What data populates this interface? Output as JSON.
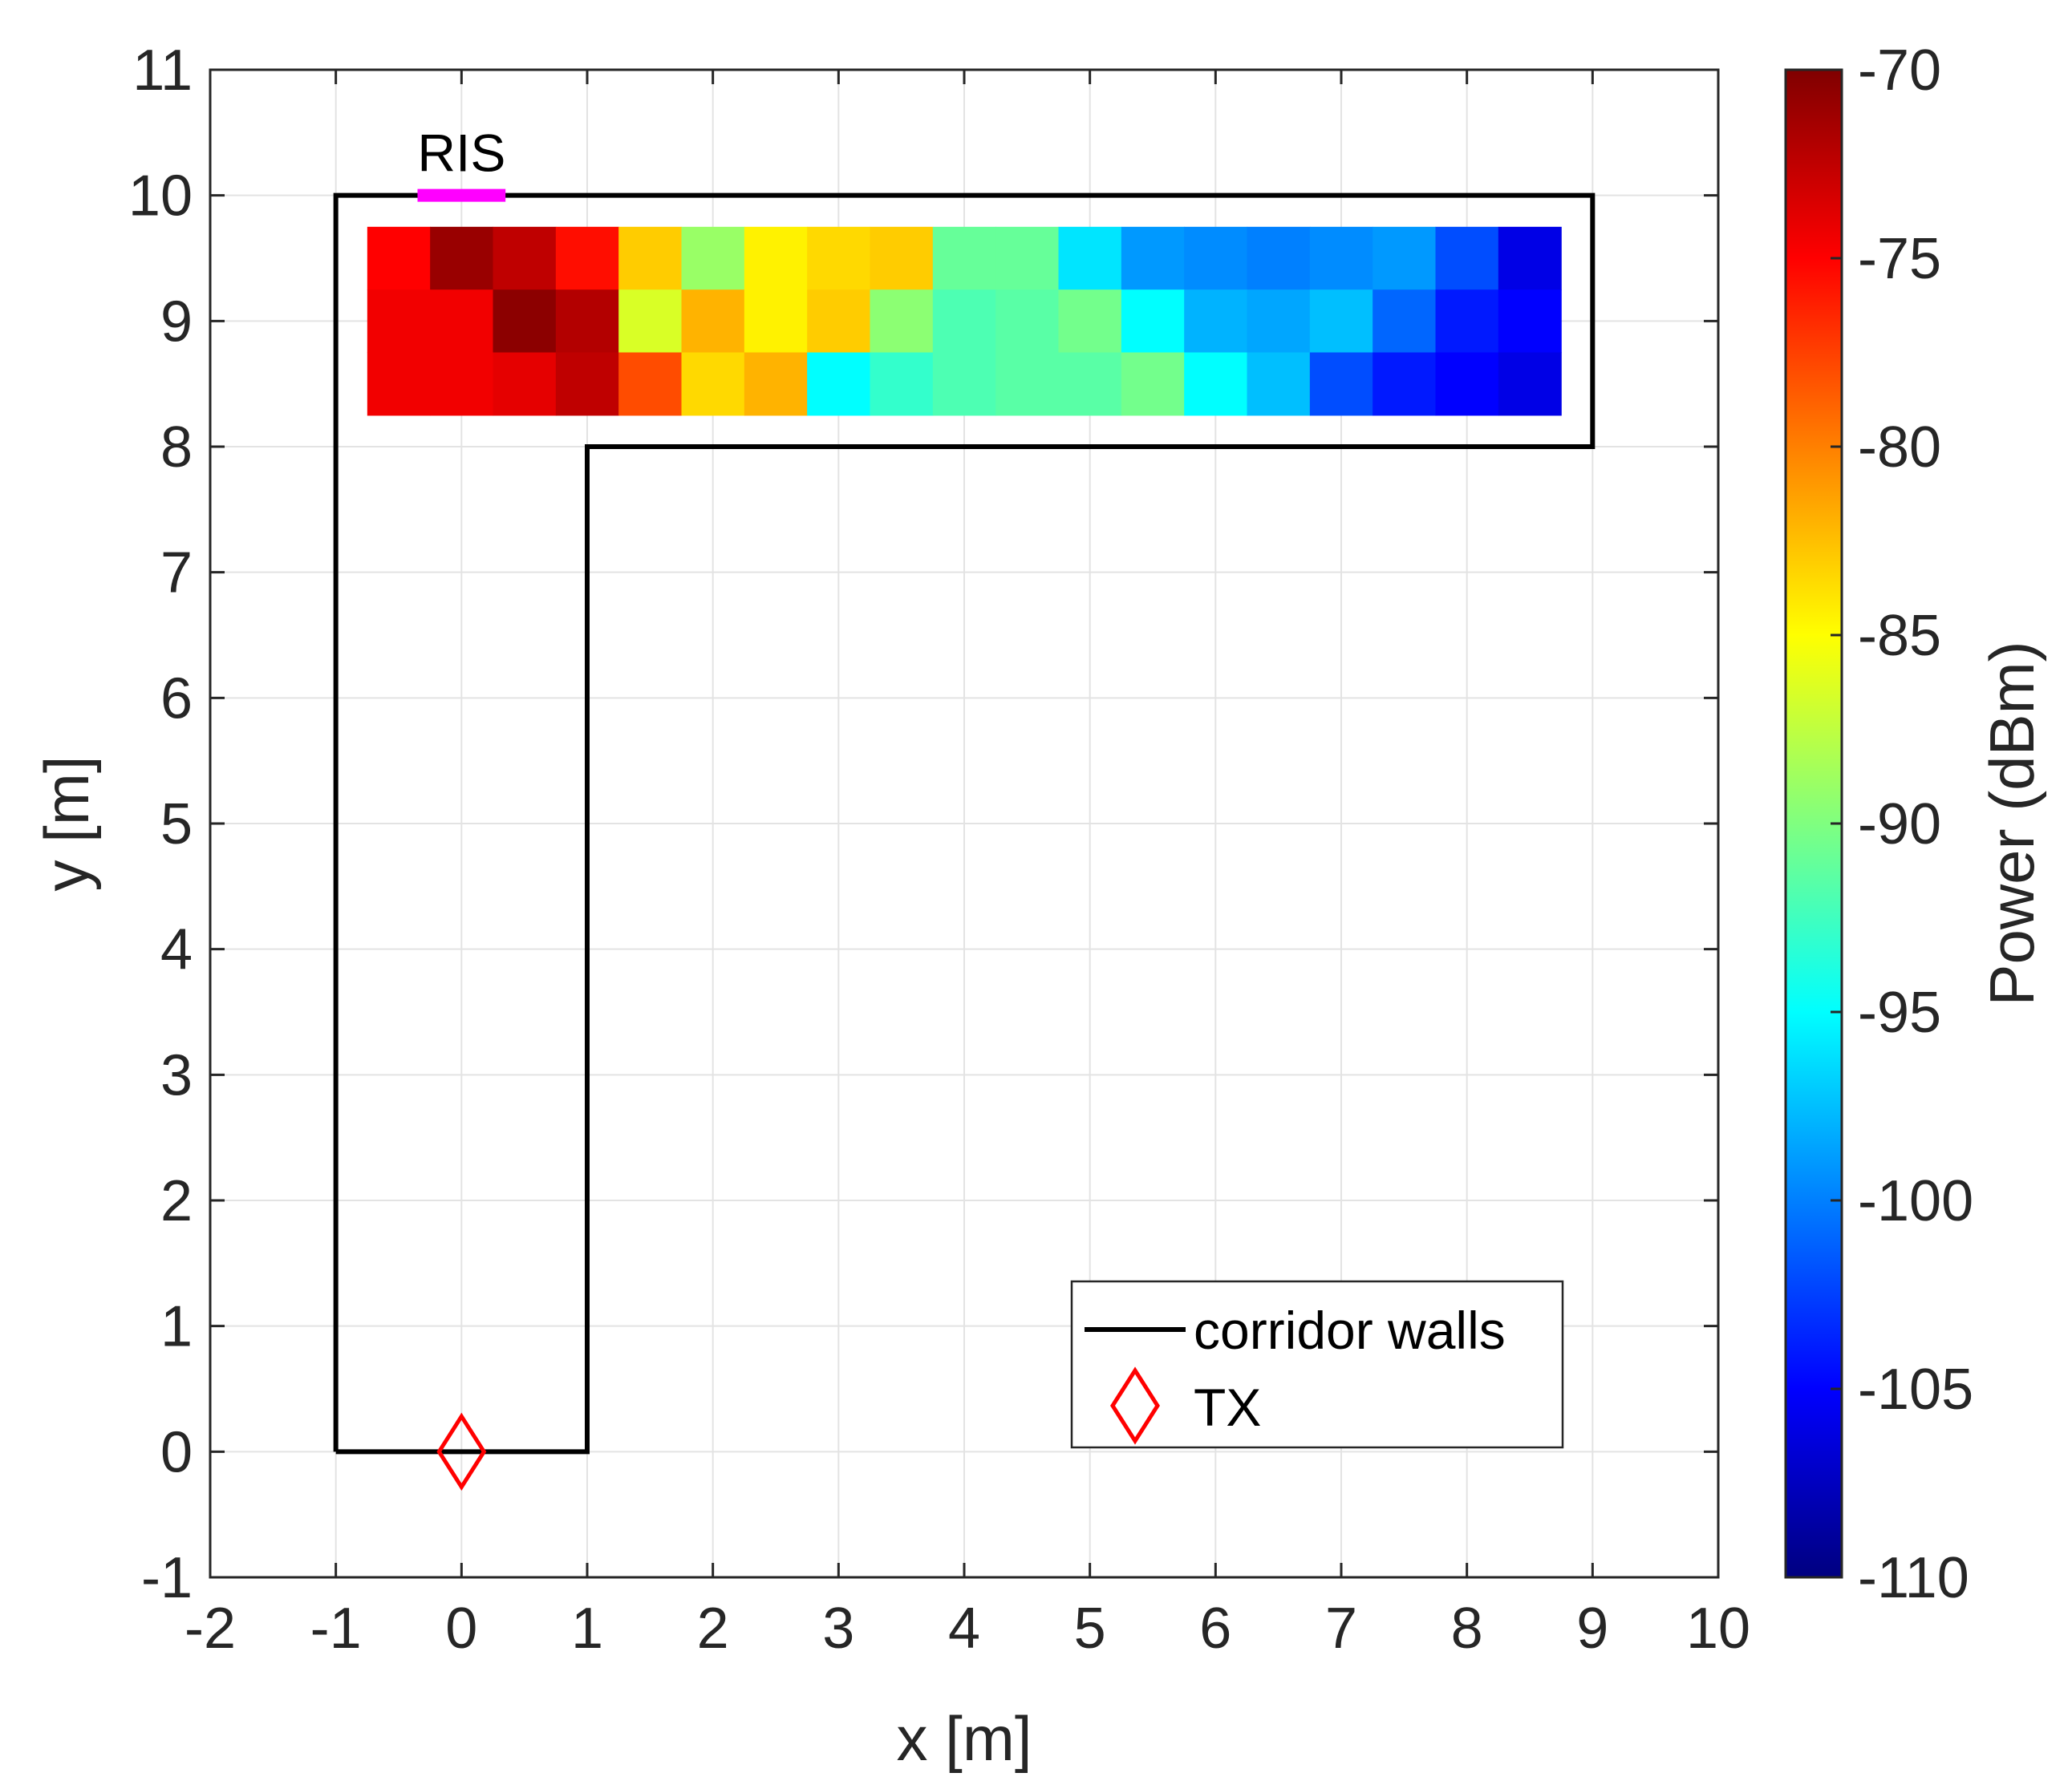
{
  "chart_data": {
    "type": "heatmap",
    "title": "",
    "xlabel": "x [m]",
    "ylabel": "y [m]",
    "xlim": [
      -2,
      10
    ],
    "ylim": [
      -1,
      11
    ],
    "xticks": [
      "-2",
      "-1",
      "0",
      "1",
      "2",
      "3",
      "4",
      "5",
      "6",
      "7",
      "8",
      "9",
      "10"
    ],
    "yticks": [
      "-1",
      "0",
      "1",
      "2",
      "3",
      "4",
      "5",
      "6",
      "7",
      "8",
      "9",
      "10",
      "11"
    ],
    "grid": true,
    "heatmap": {
      "x_centers": [
        -0.5,
        0,
        0.5,
        1,
        1.5,
        2,
        2.5,
        3,
        3.5,
        4,
        4.5,
        5,
        5.5,
        6,
        6.5,
        7,
        7.5,
        8,
        8.5
      ],
      "y_centers": [
        9.5,
        9,
        8.5
      ],
      "cell_size": 0.5,
      "values": [
        [
          -75,
          -71,
          -72.5,
          -75.5,
          -83,
          -89,
          -84.5,
          -83.5,
          -83,
          -91,
          -91,
          -96,
          -99,
          -99.5,
          -100,
          -99.5,
          -99,
          -102,
          -106
        ],
        [
          -74.5,
          -74.5,
          -70.5,
          -72,
          -86.5,
          -82,
          -84.5,
          -83,
          -89.5,
          -92,
          -91.5,
          -90.5,
          -95,
          -98,
          -98.5,
          -97.5,
          -101,
          -104,
          -105
        ],
        [
          -74.5,
          -74.5,
          -74,
          -72.5,
          -78,
          -83.5,
          -82,
          -95,
          -93,
          -92,
          -91.5,
          -91.5,
          -90.5,
          -95,
          -97.5,
          -102,
          -104,
          -105,
          -106
        ]
      ]
    },
    "colorbar": {
      "label": "Power (dBm)",
      "min": -110,
      "max": -70,
      "ticks": [
        "-70",
        "-75",
        "-80",
        "-85",
        "-90",
        "-95",
        "-100",
        "-105",
        "-110"
      ],
      "colormap": "jet"
    },
    "corridor_walls": {
      "name": "corridor walls",
      "color": "#000000",
      "x": [
        -1,
        -1,
        9,
        9,
        1,
        1,
        -1
      ],
      "y": [
        0,
        10,
        10,
        8,
        8,
        0,
        0
      ]
    },
    "tx": {
      "name": "TX",
      "x": 0,
      "y": 0,
      "marker": "diamond",
      "color": "#ff0000"
    },
    "ris": {
      "label": "RIS",
      "x": [
        -0.35,
        0.35
      ],
      "y": 10,
      "color": "#ff00ff"
    },
    "legend": {
      "position": "bottom-right",
      "entries": [
        "corridor walls",
        "TX"
      ]
    }
  }
}
